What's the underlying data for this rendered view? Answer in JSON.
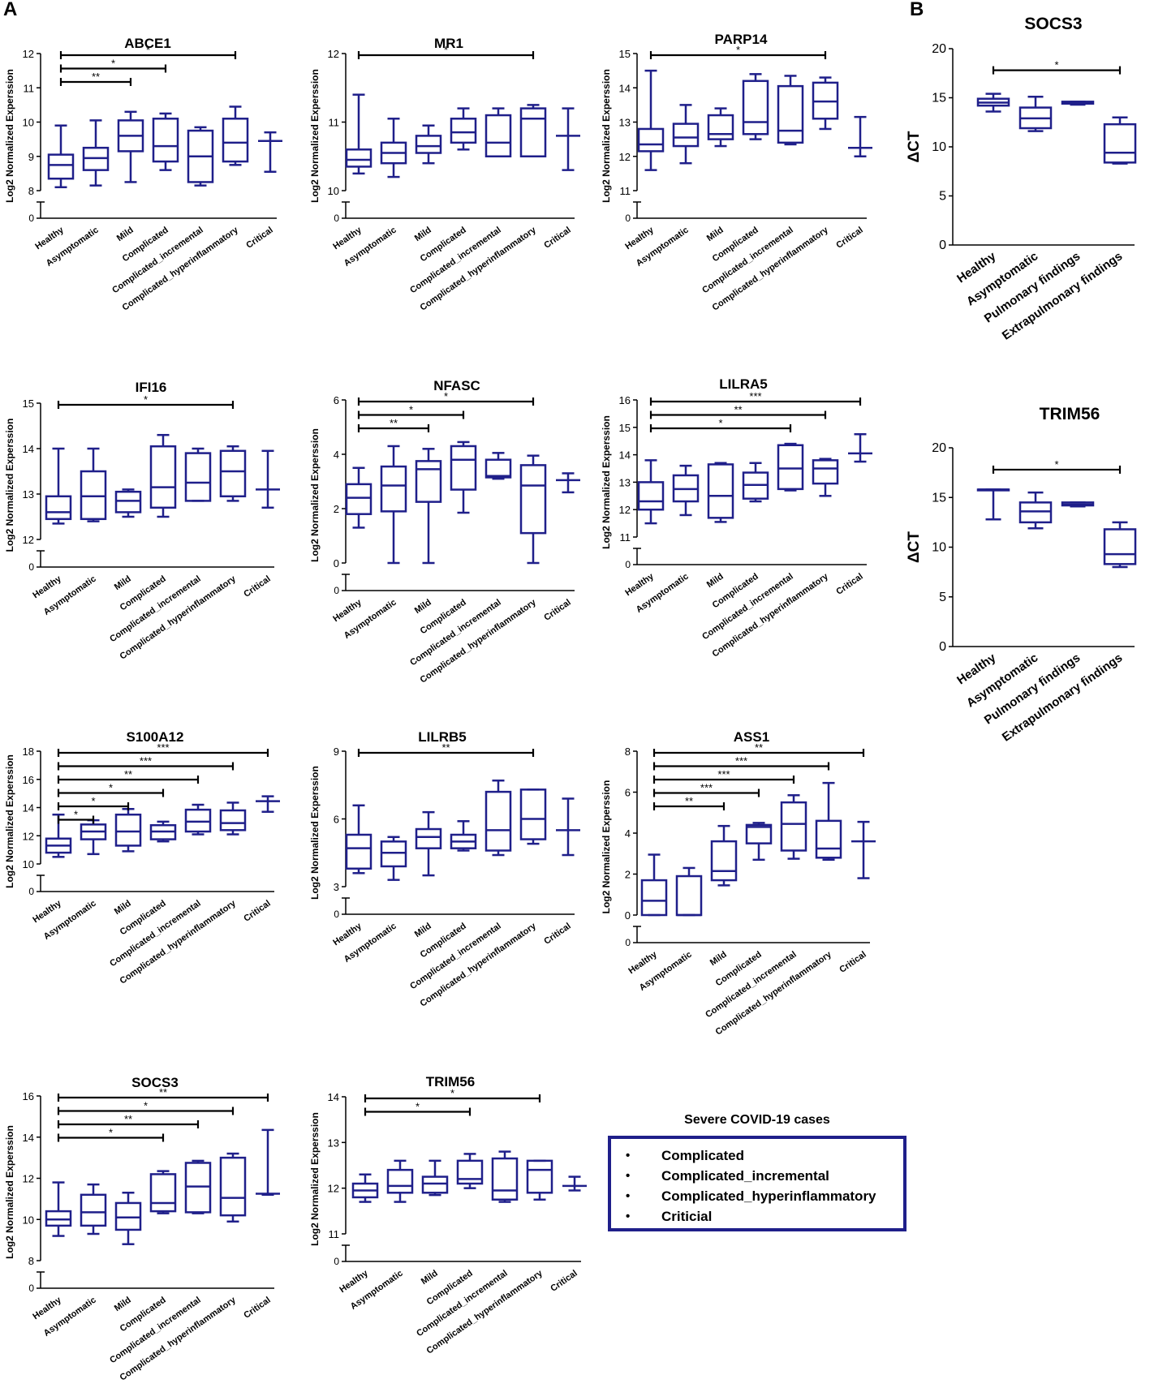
{
  "panel_labels": {
    "a": "A",
    "b": "B"
  },
  "colors": {
    "box": "#1f1f8a",
    "axis": "#000000",
    "text": "#000000"
  },
  "legend": {
    "title": "Severe COVID-19 cases",
    "items": [
      "Complicated",
      "Complicated_incremental",
      "Complicated_hyperinflammatory",
      "Criticial"
    ]
  },
  "chart_data": [
    {
      "type": "box",
      "title": "ABCE1",
      "ylabel": "Log2 Normalized Experssion",
      "categories": [
        "Healthy",
        "Asymptomatic",
        "Mild",
        "Complicated",
        "Complicated_incremental",
        "Complicated_hyperinflammatory",
        "Critical"
      ],
      "ylim": [
        8,
        12
      ],
      "yticks": [
        8,
        9,
        10,
        11,
        12
      ],
      "boxes": [
        [
          8.1,
          8.35,
          8.75,
          9.05,
          9.9
        ],
        [
          8.15,
          8.6,
          8.95,
          9.25,
          10.05
        ],
        [
          8.25,
          9.15,
          9.6,
          10.05,
          10.3
        ],
        [
          8.6,
          8.85,
          9.3,
          10.1,
          10.25
        ],
        [
          8.15,
          8.25,
          9.0,
          9.75,
          9.85
        ],
        [
          8.75,
          8.85,
          9.4,
          10.1,
          10.45
        ],
        [
          8.55,
          null,
          9.45,
          null,
          9.7
        ]
      ],
      "significance": [
        [
          0,
          2,
          "**"
        ],
        [
          0,
          3,
          "*"
        ],
        [
          0,
          5,
          "*"
        ]
      ]
    },
    {
      "type": "box",
      "title": "MR1",
      "ylabel": "Log2 Normalized Experssion",
      "categories": [
        "Healthy",
        "Asymptomatic",
        "Mild",
        "Complicated",
        "Complicated_incremental",
        "Complicated_hyperinflammatory",
        "Critical"
      ],
      "ylim": [
        10,
        12
      ],
      "yticks": [
        10,
        11,
        12
      ],
      "boxes": [
        [
          10.25,
          10.35,
          10.45,
          10.6,
          11.4
        ],
        [
          10.2,
          10.4,
          10.55,
          10.7,
          11.05
        ],
        [
          10.4,
          10.55,
          10.65,
          10.8,
          10.95
        ],
        [
          10.6,
          10.7,
          10.85,
          11.05,
          11.2
        ],
        [
          10.5,
          10.5,
          10.7,
          11.1,
          11.2
        ],
        [
          10.5,
          10.5,
          11.05,
          11.2,
          11.25
        ],
        [
          10.3,
          null,
          10.8,
          null,
          11.2
        ]
      ],
      "significance": [
        [
          0,
          5,
          "*"
        ]
      ]
    },
    {
      "type": "box",
      "title": "PARP14",
      "ylabel": "Log2 Normalized Experssion",
      "categories": [
        "Healthy",
        "Asymptomatic",
        "Mild",
        "Complicated",
        "Complicated_incremental",
        "Complicated_hyperinflammatory",
        "Critical"
      ],
      "ylim": [
        11,
        15
      ],
      "yticks": [
        11,
        12,
        13,
        14,
        15
      ],
      "boxes": [
        [
          11.6,
          12.15,
          12.35,
          12.8,
          14.5
        ],
        [
          11.8,
          12.3,
          12.55,
          12.95,
          13.5
        ],
        [
          12.3,
          12.5,
          12.65,
          13.2,
          13.4
        ],
        [
          12.5,
          12.65,
          13.0,
          14.2,
          14.4
        ],
        [
          12.35,
          12.4,
          12.75,
          14.05,
          14.35
        ],
        [
          12.8,
          13.1,
          13.6,
          14.15,
          14.3
        ],
        [
          12.0,
          null,
          12.25,
          null,
          13.15
        ]
      ],
      "significance": [
        [
          0,
          5,
          "*"
        ]
      ]
    },
    {
      "type": "box",
      "title": "IFI16",
      "ylabel": "Log2 Normalized Experssion",
      "categories": [
        "Healthy",
        "Asymptomatic",
        "Mild",
        "Complicated",
        "Complicated_incremental",
        "Complicated_hyperinflammatory",
        "Critical"
      ],
      "ylim": [
        12,
        15
      ],
      "yticks": [
        12,
        13,
        14,
        15
      ],
      "boxes": [
        [
          12.35,
          12.45,
          12.6,
          12.95,
          14.0
        ],
        [
          12.4,
          12.45,
          12.95,
          13.5,
          14.0
        ],
        [
          12.5,
          12.6,
          12.85,
          13.05,
          13.1
        ],
        [
          12.5,
          12.7,
          13.15,
          14.05,
          14.3
        ],
        [
          12.85,
          12.85,
          13.25,
          13.9,
          14.0
        ],
        [
          12.85,
          12.95,
          13.5,
          13.95,
          14.05
        ],
        [
          12.7,
          null,
          13.1,
          null,
          13.95
        ]
      ],
      "significance": [
        [
          0,
          5,
          "*"
        ]
      ]
    },
    {
      "type": "box",
      "title": "NFASC",
      "ylabel": "Log2 Normalized Experssion",
      "categories": [
        "Healthy",
        "Asymptomatic",
        "Mild",
        "Complicated",
        "Complicated_incremental",
        "Complicated_hyperinflammatory",
        "Critical"
      ],
      "ylim": [
        0,
        6
      ],
      "yticks": [
        0,
        2,
        4,
        6
      ],
      "boxes": [
        [
          1.3,
          1.8,
          2.4,
          2.9,
          3.5
        ],
        [
          0,
          1.9,
          2.85,
          3.55,
          4.3
        ],
        [
          0,
          2.25,
          3.45,
          3.75,
          4.2
        ],
        [
          1.85,
          2.7,
          3.8,
          4.3,
          4.45
        ],
        [
          3.1,
          3.15,
          3.2,
          3.8,
          4.05
        ],
        [
          0,
          1.1,
          2.85,
          3.6,
          3.95
        ],
        [
          2.6,
          null,
          3.05,
          null,
          3.3
        ]
      ],
      "significance": [
        [
          0,
          2,
          "**"
        ],
        [
          0,
          3,
          "*"
        ],
        [
          0,
          5,
          "*"
        ]
      ]
    },
    {
      "type": "box",
      "title": "LILRA5",
      "ylabel": "Log2 Normalized Experssion",
      "categories": [
        "Healthy",
        "Asymptomatic",
        "Mild",
        "Complicated",
        "Complicated_incremental",
        "Complicated_hyperinflammatory",
        "Critical"
      ],
      "ylim": [
        11,
        16
      ],
      "yticks": [
        11,
        12,
        13,
        14,
        15,
        16
      ],
      "boxes": [
        [
          11.5,
          12.0,
          12.3,
          13.0,
          13.8
        ],
        [
          11.8,
          12.3,
          12.75,
          13.25,
          13.6
        ],
        [
          11.55,
          11.7,
          12.5,
          13.65,
          13.7
        ],
        [
          12.3,
          12.4,
          12.9,
          13.35,
          13.7
        ],
        [
          12.7,
          12.75,
          13.5,
          14.35,
          14.4
        ],
        [
          12.5,
          12.95,
          13.5,
          13.8,
          13.85
        ],
        [
          13.75,
          null,
          14.05,
          null,
          14.75
        ]
      ],
      "significance": [
        [
          0,
          4,
          "*"
        ],
        [
          0,
          5,
          "**"
        ],
        [
          0,
          6,
          "***"
        ]
      ]
    },
    {
      "type": "box",
      "title": "S100A12",
      "ylabel": "Log2 Normalized Experssion",
      "categories": [
        "Healthy",
        "Asymptomatic",
        "Mild",
        "Complicated",
        "Complicated_incremental",
        "Complicated_hyperinflammatory",
        "Critical"
      ],
      "ylim": [
        10,
        18
      ],
      "yticks": [
        10,
        12,
        14,
        16,
        18
      ],
      "boxes": [
        [
          10.5,
          10.8,
          11.3,
          11.8,
          13.5
        ],
        [
          10.7,
          11.75,
          12.3,
          12.8,
          13.1
        ],
        [
          10.9,
          11.3,
          12.3,
          13.5,
          13.9
        ],
        [
          11.6,
          11.75,
          12.3,
          12.75,
          13.0
        ],
        [
          12.1,
          12.3,
          13.0,
          13.85,
          14.2
        ],
        [
          12.1,
          12.4,
          12.9,
          13.8,
          14.35
        ],
        [
          13.7,
          null,
          14.45,
          null,
          14.8
        ]
      ],
      "significance": [
        [
          0,
          1,
          "*"
        ],
        [
          0,
          2,
          "*"
        ],
        [
          0,
          3,
          "*"
        ],
        [
          0,
          4,
          "**"
        ],
        [
          0,
          5,
          "***"
        ],
        [
          0,
          6,
          "***"
        ]
      ]
    },
    {
      "type": "box",
      "title": "LILRB5",
      "ylabel": "Log2 Normalized Experssion",
      "categories": [
        "Healthy",
        "Asymptomatic",
        "Mild",
        "Complicated",
        "Complicated_incremental",
        "Complicated_hyperinflammatory",
        "Critical"
      ],
      "ylim": [
        3,
        9
      ],
      "yticks": [
        3,
        6,
        9
      ],
      "boxes": [
        [
          3.6,
          3.8,
          4.7,
          5.3,
          6.6
        ],
        [
          3.3,
          3.9,
          4.5,
          5.0,
          5.2
        ],
        [
          3.5,
          4.7,
          5.2,
          5.55,
          6.3
        ],
        [
          4.6,
          4.7,
          5.0,
          5.3,
          5.9
        ],
        [
          4.4,
          4.6,
          5.5,
          7.2,
          7.7
        ],
        [
          4.9,
          5.1,
          6.0,
          7.3,
          7.3
        ],
        [
          4.4,
          null,
          5.5,
          null,
          6.9
        ]
      ],
      "significance": [
        [
          0,
          5,
          "**"
        ]
      ]
    },
    {
      "type": "box",
      "title": "ASS1",
      "ylabel": "Log2 Normalized Experssion",
      "categories": [
        "Healthy",
        "Asymptomatic",
        "Mild",
        "Complicated",
        "Complicated_incremental",
        "Complicated_hyperinflammatory",
        "Critical"
      ],
      "ylim": [
        0,
        8
      ],
      "yticks": [
        0,
        2,
        4,
        6,
        8
      ],
      "boxes": [
        [
          0,
          0,
          0.7,
          1.7,
          2.95
        ],
        [
          0,
          0,
          0,
          1.9,
          2.3
        ],
        [
          1.45,
          1.7,
          2.15,
          3.6,
          4.35
        ],
        [
          2.7,
          3.5,
          4.3,
          4.4,
          4.5
        ],
        [
          2.75,
          3.15,
          4.45,
          5.5,
          5.85
        ],
        [
          2.7,
          2.8,
          3.25,
          4.6,
          6.45
        ],
        [
          1.8,
          null,
          3.6,
          null,
          4.55
        ]
      ],
      "significance": [
        [
          0,
          2,
          "**"
        ],
        [
          0,
          3,
          "***"
        ],
        [
          0,
          4,
          "***"
        ],
        [
          0,
          5,
          "***"
        ],
        [
          0,
          6,
          "**"
        ]
      ]
    },
    {
      "type": "box",
      "title": "SOCS3",
      "ylabel": "Log2 Normalized Experssion",
      "categories": [
        "Healthy",
        "Asymptomatic",
        "Mild",
        "Complicated",
        "Complicated_incremental",
        "Complicated_hyperinflammatory",
        "Critical"
      ],
      "ylim": [
        8,
        16
      ],
      "yticks": [
        8,
        10,
        12,
        14,
        16
      ],
      "boxes": [
        [
          9.2,
          9.7,
          10.0,
          10.4,
          11.8
        ],
        [
          9.3,
          9.7,
          10.35,
          11.2,
          11.7
        ],
        [
          8.8,
          9.5,
          10.1,
          10.8,
          11.3
        ],
        [
          10.3,
          10.4,
          10.8,
          12.2,
          12.35
        ],
        [
          10.3,
          10.35,
          11.6,
          12.75,
          12.85
        ],
        [
          9.9,
          10.2,
          11.05,
          13.0,
          13.2
        ],
        [
          11.2,
          null,
          11.25,
          null,
          14.35
        ]
      ],
      "significance": [
        [
          0,
          3,
          "*"
        ],
        [
          0,
          4,
          "**"
        ],
        [
          0,
          5,
          "*"
        ],
        [
          0,
          6,
          "**"
        ]
      ]
    },
    {
      "type": "box",
      "title": "TRIM56",
      "ylabel": "Log2 Normalized Experssion",
      "categories": [
        "Healthy",
        "Asymptomatic",
        "Mild",
        "Complicated",
        "Complicated_incremental",
        "Complicated_hyperinflammatory",
        "Critical"
      ],
      "ylim": [
        11,
        14
      ],
      "yticks": [
        11,
        12,
        13,
        14
      ],
      "boxes": [
        [
          11.7,
          11.8,
          11.95,
          12.1,
          12.3
        ],
        [
          11.7,
          11.9,
          12.05,
          12.4,
          12.6
        ],
        [
          11.85,
          11.9,
          12.1,
          12.25,
          12.6
        ],
        [
          12.0,
          12.1,
          12.2,
          12.6,
          12.75
        ],
        [
          11.7,
          11.75,
          11.95,
          12.65,
          12.8
        ],
        [
          11.75,
          11.9,
          12.4,
          12.6,
          12.6
        ],
        [
          11.95,
          null,
          12.05,
          null,
          12.25
        ]
      ],
      "significance": [
        [
          0,
          3,
          "*"
        ],
        [
          0,
          5,
          "*"
        ]
      ]
    },
    {
      "type": "box",
      "title": "SOCS3",
      "ylabel": "ΔCT",
      "categories": [
        "Healthy",
        "Asymptomatic",
        "Pulmonary findings",
        "Extrapulmonary findings"
      ],
      "ylim": [
        0,
        20
      ],
      "yticks": [
        0,
        5,
        10,
        15,
        20
      ],
      "boxes": [
        [
          13.6,
          14.2,
          14.5,
          14.9,
          15.4
        ],
        [
          11.6,
          11.9,
          12.9,
          14.0,
          15.1
        ],
        [
          14.3,
          14.4,
          14.5,
          14.6,
          14.6
        ],
        [
          8.3,
          8.4,
          9.4,
          12.3,
          13.0
        ]
      ],
      "significance": [
        [
          0,
          3,
          "*"
        ]
      ]
    },
    {
      "type": "box",
      "title": "TRIM56",
      "ylabel": "ΔCT",
      "categories": [
        "Healthy",
        "Asymptomatic",
        "Pulmonary findings",
        "Extrapulmonary findings"
      ],
      "ylim": [
        0,
        20
      ],
      "yticks": [
        0,
        5,
        10,
        15,
        20
      ],
      "boxes": [
        [
          12.8,
          15.8,
          15.8,
          15.8,
          15.8
        ],
        [
          11.9,
          12.5,
          13.6,
          14.5,
          15.5
        ],
        [
          14.1,
          14.2,
          14.3,
          14.5,
          14.5
        ],
        [
          8.0,
          8.3,
          9.3,
          11.8,
          12.5
        ]
      ],
      "significance": [
        [
          0,
          3,
          "*"
        ]
      ]
    }
  ]
}
